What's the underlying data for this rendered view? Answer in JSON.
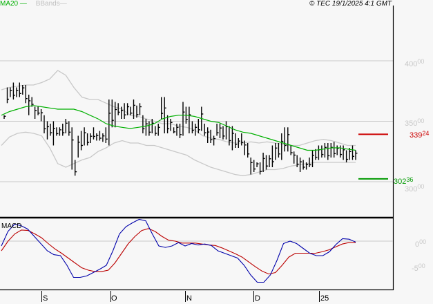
{
  "legend": {
    "ma_label": "MA20",
    "ma_color": "#00b000",
    "bb_label": "BBands",
    "bb_color": "#c0c0c0"
  },
  "copyright": "© TEC 19/1/2025 4:1 GMT",
  "price_axis": {
    "labels": [
      {
        "int": "400",
        "dec": "00",
        "value": 400
      },
      {
        "int": "350",
        "dec": "00",
        "value": 350
      },
      {
        "int": "300",
        "dec": "00",
        "value": 300
      }
    ]
  },
  "levels": {
    "resistance": {
      "int": "339",
      "dec": "24",
      "value": 339.24,
      "color": "#cc0000"
    },
    "support": {
      "int": "302",
      "dec": "36",
      "value": 302.36,
      "color": "#009900"
    }
  },
  "macd": {
    "title": "MACD",
    "axis_labels": [
      {
        "int": "0",
        "dec": "00",
        "value": 0
      },
      {
        "int": "-5",
        "dec": "00",
        "value": -5
      }
    ]
  },
  "x_axis": {
    "labels": [
      "S",
      "O",
      "N",
      "D",
      "25"
    ]
  },
  "chart_data": [
    {
      "type": "ohlc",
      "title": "Price with MA20 and Bollinger Bands",
      "ylim": [
        280,
        420
      ],
      "yticks": [
        300,
        350,
        400
      ],
      "x_ticks": [
        "S",
        "O",
        "N",
        "D",
        "25"
      ],
      "horizontal_levels": [
        339.24,
        302.36
      ],
      "bars_approx_hl": [
        [
          355,
          352
        ],
        [
          378,
          365
        ],
        [
          378,
          370
        ],
        [
          382,
          368
        ],
        [
          378,
          370
        ],
        [
          382,
          370
        ],
        [
          380,
          372
        ],
        [
          380,
          365
        ],
        [
          372,
          355
        ],
        [
          370,
          362
        ],
        [
          362,
          352
        ],
        [
          362,
          355
        ],
        [
          360,
          350
        ],
        [
          355,
          340
        ],
        [
          350,
          335
        ],
        [
          348,
          338
        ],
        [
          350,
          330
        ],
        [
          345,
          338
        ],
        [
          345,
          338
        ],
        [
          348,
          338
        ],
        [
          352,
          340
        ],
        [
          350,
          338
        ],
        [
          345,
          310
        ],
        [
          318,
          305
        ],
        [
          338,
          320
        ],
        [
          342,
          326
        ],
        [
          345,
          330
        ],
        [
          340,
          330
        ],
        [
          340,
          332
        ],
        [
          345,
          335
        ],
        [
          340,
          334
        ],
        [
          342,
          334
        ],
        [
          340,
          333
        ],
        [
          345,
          332
        ],
        [
          368,
          330
        ],
        [
          368,
          345
        ],
        [
          366,
          345
        ],
        [
          365,
          355
        ],
        [
          362,
          352
        ],
        [
          365,
          352
        ],
        [
          365,
          355
        ],
        [
          362,
          355
        ],
        [
          368,
          352
        ],
        [
          363,
          353
        ],
        [
          365,
          355
        ],
        [
          355,
          340
        ],
        [
          352,
          338
        ],
        [
          350,
          338
        ],
        [
          352,
          340
        ],
        [
          346,
          338
        ],
        [
          348,
          338
        ],
        [
          370,
          352
        ],
        [
          370,
          340
        ],
        [
          355,
          340
        ],
        [
          352,
          342
        ],
        [
          345,
          340
        ],
        [
          348,
          338
        ],
        [
          348,
          336
        ],
        [
          366,
          338
        ],
        [
          362,
          348
        ],
        [
          362,
          340
        ],
        [
          350,
          340
        ],
        [
          348,
          338
        ],
        [
          352,
          340
        ],
        [
          362,
          342
        ],
        [
          348,
          338
        ],
        [
          345,
          332
        ],
        [
          343,
          332
        ],
        [
          338,
          330
        ],
        [
          348,
          338
        ],
        [
          348,
          336
        ],
        [
          346,
          335
        ],
        [
          350,
          335
        ],
        [
          346,
          330
        ],
        [
          346,
          326
        ],
        [
          340,
          328
        ],
        [
          336,
          328
        ],
        [
          340,
          330
        ],
        [
          334,
          322
        ],
        [
          332,
          320
        ],
        [
          320,
          306
        ],
        [
          318,
          308
        ],
        [
          316,
          312
        ],
        [
          316,
          306
        ],
        [
          324,
          308
        ],
        [
          322,
          310
        ],
        [
          322,
          312
        ],
        [
          330,
          312
        ],
        [
          332,
          318
        ],
        [
          332,
          320
        ],
        [
          340,
          318
        ],
        [
          345,
          325
        ],
        [
          345,
          325
        ],
        [
          330,
          322
        ],
        [
          325,
          315
        ],
        [
          322,
          312
        ],
        [
          320,
          308
        ],
        [
          318,
          310
        ],
        [
          316,
          310
        ],
        [
          320,
          312
        ],
        [
          326,
          312
        ],
        [
          327,
          318
        ],
        [
          330,
          318
        ],
        [
          330,
          320
        ],
        [
          332,
          320
        ],
        [
          332,
          318
        ],
        [
          332,
          320
        ],
        [
          333,
          320
        ],
        [
          330,
          322
        ],
        [
          330,
          320
        ],
        [
          330,
          318
        ],
        [
          326,
          316
        ],
        [
          328,
          318
        ],
        [
          330,
          318
        ],
        [
          326,
          318
        ]
      ],
      "series": [
        {
          "name": "MA20",
          "color": "#00b000",
          "values_approx": [
            355,
            358,
            360,
            362,
            363,
            362,
            361,
            360,
            360,
            360,
            358,
            355,
            352,
            348,
            346,
            345,
            344,
            345,
            346,
            348,
            352,
            354,
            355,
            355,
            354,
            352,
            350,
            349,
            346,
            343,
            341,
            340,
            338,
            336,
            334,
            332,
            330,
            328,
            326,
            326,
            327,
            328,
            328,
            327,
            326
          ]
        },
        {
          "name": "BB upper",
          "color": "#c8c8c8",
          "values_approx": [
            376,
            378,
            379,
            380,
            380,
            382,
            385,
            392,
            388,
            378,
            370,
            368,
            368,
            365,
            362,
            360,
            355,
            354,
            352,
            350,
            348,
            348,
            346,
            345,
            343,
            338,
            336,
            335,
            333,
            332,
            332,
            333,
            332,
            333,
            332,
            331,
            330,
            330,
            332,
            334,
            335,
            334,
            332,
            330,
            330
          ]
        },
        {
          "name": "BB lower",
          "color": "#c8c8c8",
          "values_approx": [
            330,
            337,
            340,
            341,
            340,
            338,
            328,
            315,
            312,
            315,
            318,
            320,
            325,
            328,
            332,
            334,
            332,
            332,
            330,
            330,
            328,
            326,
            324,
            322,
            318,
            315,
            312,
            310,
            308,
            306,
            305,
            306,
            308,
            310,
            310,
            311,
            313,
            314,
            315,
            316,
            316,
            316,
            316,
            316,
            316
          ]
        }
      ]
    },
    {
      "type": "line",
      "title": "MACD",
      "ylim": [
        -9,
        5
      ],
      "yticks": [
        0,
        -5
      ],
      "series": [
        {
          "name": "MACD",
          "color": "#0000aa",
          "values_approx": [
            -1,
            2,
            3.5,
            3.2,
            2.5,
            1,
            -0.5,
            -2,
            -2.8,
            -3,
            -5,
            -7.5,
            -7.5,
            -7.2,
            -6.5,
            -5.8,
            -5,
            -2,
            1.5,
            3,
            3.8,
            4.5,
            4.2,
            1.5,
            -1,
            -1.3,
            -1,
            -0.3,
            -1,
            -0.5,
            -0.8,
            -0.6,
            -0.9,
            -2,
            -2.5,
            -3,
            -3.5,
            -5,
            -7,
            -8.5,
            -8.5,
            -7,
            -4,
            -0.5,
            0,
            -0.5,
            -1.5,
            -2.5,
            -3,
            -3,
            -2.2,
            -0.7,
            0.5,
            0.4,
            -0.2
          ]
        },
        {
          "name": "Signal",
          "color": "#bb0000",
          "values_approx": [
            -2,
            0,
            1.5,
            2.3,
            2.2,
            1.5,
            0.7,
            -0.5,
            -1.6,
            -2.5,
            -3.5,
            -4.5,
            -5.5,
            -6,
            -6.3,
            -6.3,
            -6,
            -4.5,
            -2.5,
            -0.5,
            1,
            2.2,
            2.6,
            2,
            1,
            0.2,
            0,
            -0.4,
            -0.4,
            -0.4,
            -0.6,
            -0.8,
            -0.9,
            -1.4,
            -2,
            -2.6,
            -3.3,
            -4.3,
            -5.3,
            -6.2,
            -6.8,
            -6.5,
            -5,
            -3.3,
            -2.5,
            -2.5,
            -2.5,
            -2.5,
            -2.2,
            -1.8,
            -1.2,
            -0.6,
            -0.3,
            -0.3
          ]
        }
      ]
    }
  ]
}
